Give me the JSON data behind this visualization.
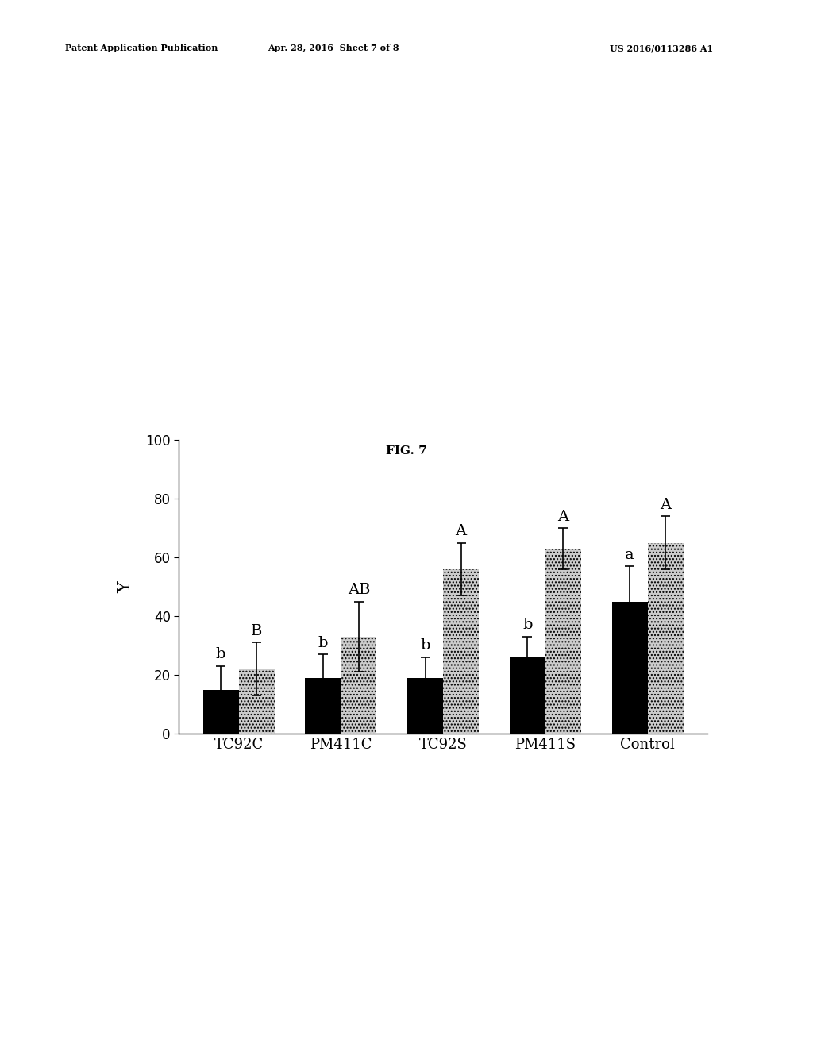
{
  "categories": [
    "TC92C",
    "PM411C",
    "TC92S",
    "PM411S",
    "Control"
  ],
  "black_values": [
    15,
    19,
    19,
    26,
    45
  ],
  "gray_values": [
    22,
    33,
    56,
    63,
    65
  ],
  "black_errors": [
    8,
    8,
    7,
    7,
    12
  ],
  "gray_errors": [
    9,
    12,
    9,
    7,
    9
  ],
  "black_labels": [
    "b",
    "b",
    "b",
    "b",
    "a"
  ],
  "gray_labels": [
    "B",
    "AB",
    "A",
    "A",
    "A"
  ],
  "ylabel": "Y",
  "fig_label": "FIG. 7",
  "ylim": [
    0,
    100
  ],
  "yticks": [
    0,
    20,
    40,
    60,
    80,
    100
  ],
  "bar_width": 0.35,
  "black_color": "#000000",
  "gray_color": "#b0b0b0",
  "gray_hatch": "....",
  "header_left": "Patent Application Publication",
  "header_mid": "Apr. 28, 2016  Sheet 7 of 8",
  "header_right": "US 2016/0113286 A1",
  "background_color": "#ffffff",
  "label_fontsize": 13,
  "tick_fontsize": 12,
  "annotation_fontsize": 14,
  "ylabel_fontsize": 16,
  "fig_label_fontsize": 11
}
